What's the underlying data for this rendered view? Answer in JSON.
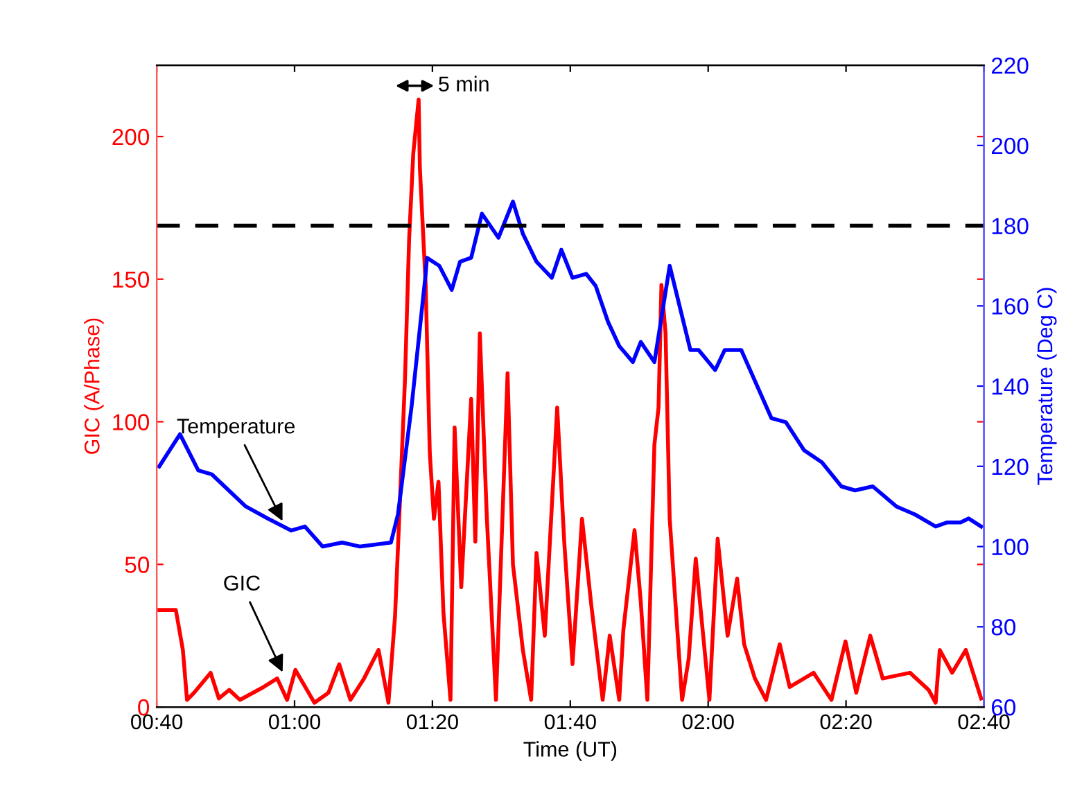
{
  "chart_data": {
    "type": "line",
    "xlabel": "Time (UT)",
    "ylabel": "GIC (A/Phase)",
    "y2label": "Temperature (Deg C)",
    "xlim": [
      0.6667,
      2.6667
    ],
    "xticks": [
      {
        "value": 0.6667,
        "label": "00:40"
      },
      {
        "value": 1.0,
        "label": "01:00"
      },
      {
        "value": 1.3333,
        "label": "01:20"
      },
      {
        "value": 1.6667,
        "label": "01:40"
      },
      {
        "value": 2.0,
        "label": "02:00"
      },
      {
        "value": 2.3333,
        "label": "02:20"
      },
      {
        "value": 2.6667,
        "label": "02:40"
      }
    ],
    "ylim": [
      0,
      225
    ],
    "yticks": [
      0,
      50,
      100,
      150,
      200
    ],
    "y2lim": [
      60,
      220
    ],
    "y2ticks": [
      60,
      80,
      100,
      120,
      140,
      160,
      180,
      200,
      220
    ],
    "grid": false,
    "legend": false,
    "line_style": "solid",
    "marker": "none",
    "series": [
      {
        "color": "#ff0000",
        "x": [
          0.673,
          0.713,
          0.73,
          0.74,
          0.757,
          0.797,
          0.817,
          0.842,
          0.868,
          0.925,
          0.958,
          0.982,
          1.002,
          1.048,
          1.082,
          1.108,
          1.135,
          1.168,
          1.203,
          1.227,
          1.243,
          1.253,
          1.267,
          1.277,
          1.287,
          1.3,
          1.303,
          1.317,
          1.327,
          1.337,
          1.348,
          1.36,
          1.377,
          1.387,
          1.403,
          1.427,
          1.437,
          1.448,
          1.465,
          1.487,
          1.515,
          1.528,
          1.552,
          1.572,
          1.585,
          1.605,
          1.635,
          1.652,
          1.672,
          1.695,
          1.718,
          1.745,
          1.762,
          1.785,
          1.795,
          1.822,
          1.837,
          1.853,
          1.87,
          1.88,
          1.887,
          1.897,
          1.907,
          1.937,
          1.953,
          1.97,
          2.003,
          2.023,
          2.047,
          2.07,
          2.087,
          2.113,
          2.14,
          2.173,
          2.197,
          2.255,
          2.298,
          2.332,
          2.358,
          2.392,
          2.422,
          2.488,
          2.533,
          2.55,
          2.56,
          2.59,
          2.623,
          2.66
        ],
        "values": [
          34,
          34,
          20,
          2.5,
          5,
          12,
          3,
          6,
          2.5,
          7,
          10,
          2.5,
          13,
          1.5,
          5,
          15,
          2.5,
          10,
          20,
          1.5,
          32,
          66,
          115,
          164,
          194,
          213,
          189,
          148,
          89,
          66,
          79,
          33,
          2.5,
          98,
          42,
          108,
          58,
          131,
          66,
          2.5,
          117,
          50,
          20,
          2.5,
          54,
          25,
          105,
          58,
          15,
          66,
          35,
          2.5,
          25,
          2.5,
          27,
          62,
          37,
          2.5,
          92,
          105,
          148,
          131,
          66,
          2.5,
          17,
          52,
          2.5,
          59,
          25,
          45,
          22,
          10,
          2.5,
          22,
          7,
          12,
          2.5,
          23,
          5,
          25,
          10,
          12,
          6,
          1.5,
          20,
          12,
          20,
          3
        ]
      },
      {
        "color": "#0000ff",
        "axis": "y2",
        "x": [
          0.673,
          0.723,
          0.767,
          0.8,
          0.882,
          0.935,
          0.992,
          1.025,
          1.068,
          1.115,
          1.158,
          1.233,
          1.25,
          1.283,
          1.317,
          1.32,
          1.35,
          1.38,
          1.4,
          1.427,
          1.453,
          1.493,
          1.528,
          1.552,
          1.585,
          1.622,
          1.645,
          1.672,
          1.705,
          1.728,
          1.758,
          1.785,
          1.818,
          1.837,
          1.87,
          1.907,
          1.957,
          1.977,
          2.017,
          2.04,
          2.08,
          2.153,
          2.188,
          2.232,
          2.275,
          2.322,
          2.355,
          2.398,
          2.455,
          2.5,
          2.55,
          2.577,
          2.61,
          2.63,
          2.66
        ],
        "values": [
          120,
          128,
          119,
          118,
          110,
          107,
          104,
          105,
          100,
          101,
          100,
          101,
          108,
          135,
          168,
          172,
          170,
          164,
          171,
          172,
          183,
          177,
          186,
          178,
          171,
          167,
          174,
          167,
          168,
          165,
          156,
          150,
          146,
          151,
          146,
          170,
          149,
          149,
          144,
          149,
          149,
          132,
          131,
          124,
          121,
          115,
          114,
          115,
          110,
          108,
          105,
          106,
          106,
          107,
          105
        ]
      }
    ],
    "ref_lines": [
      {
        "axis": "y2",
        "value": 180,
        "color": "#000000",
        "line_style": "dashed"
      }
    ],
    "annotations": [
      {
        "text": "Temperature",
        "x": 0.975,
        "y": 64
      },
      {
        "text": "GIC",
        "x": 0.975,
        "y": 11
      },
      "5 min"
    ]
  }
}
